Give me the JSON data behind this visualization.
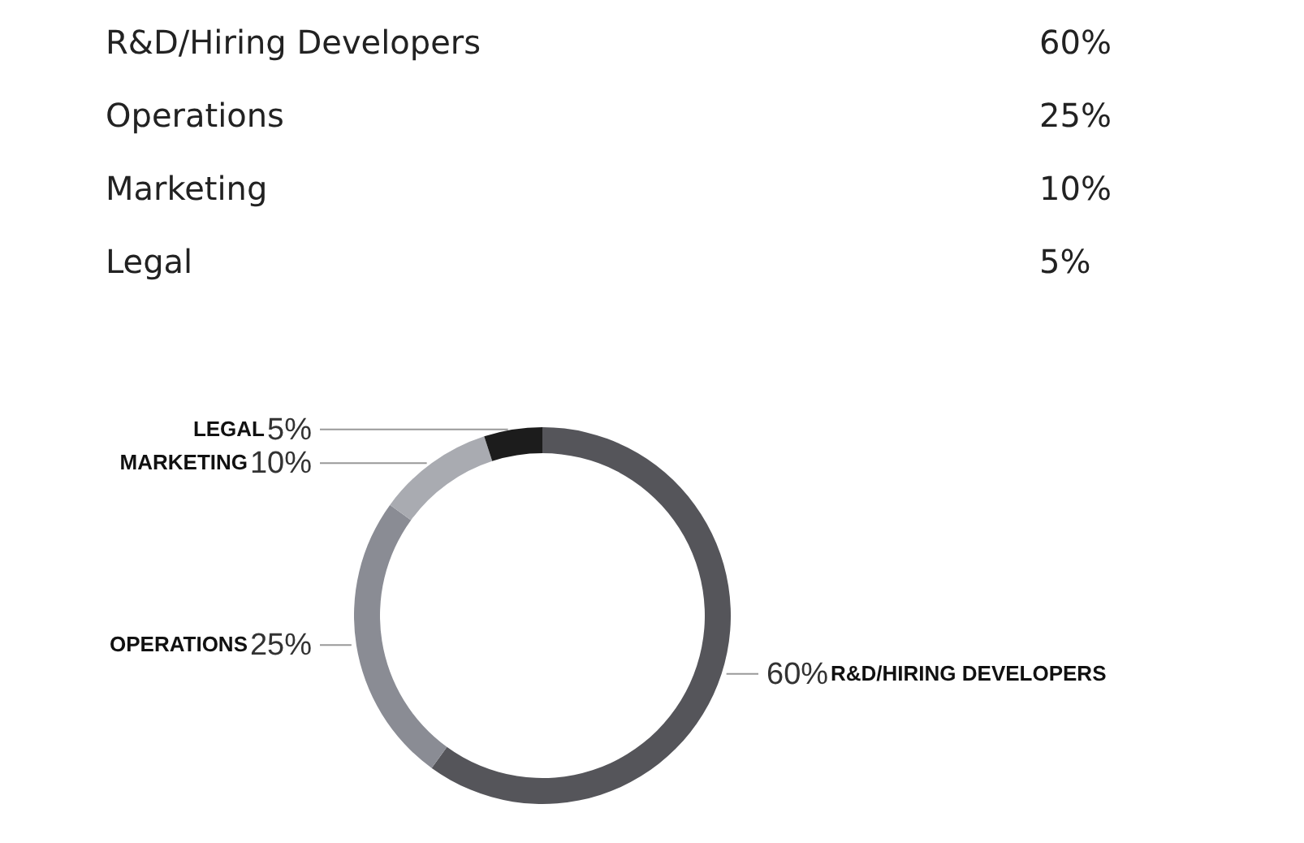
{
  "chart_data": {
    "type": "donut",
    "categories": [
      "R&D/HIRING DEVELOPERS",
      "OPERATIONS",
      "MARKETING",
      "LEGAL"
    ],
    "values": [
      60,
      25,
      10,
      5
    ],
    "value_labels": [
      "60%",
      "25%",
      "10%",
      "5%"
    ],
    "colors": [
      "#55555a",
      "#8a8c94",
      "#a9abb1",
      "#1c1c1c"
    ],
    "annotations": [
      "R&D/Hiring Developers",
      "60%",
      "Operations",
      "25%",
      "Marketing",
      "10%",
      "Legal",
      "5%"
    ]
  }
}
